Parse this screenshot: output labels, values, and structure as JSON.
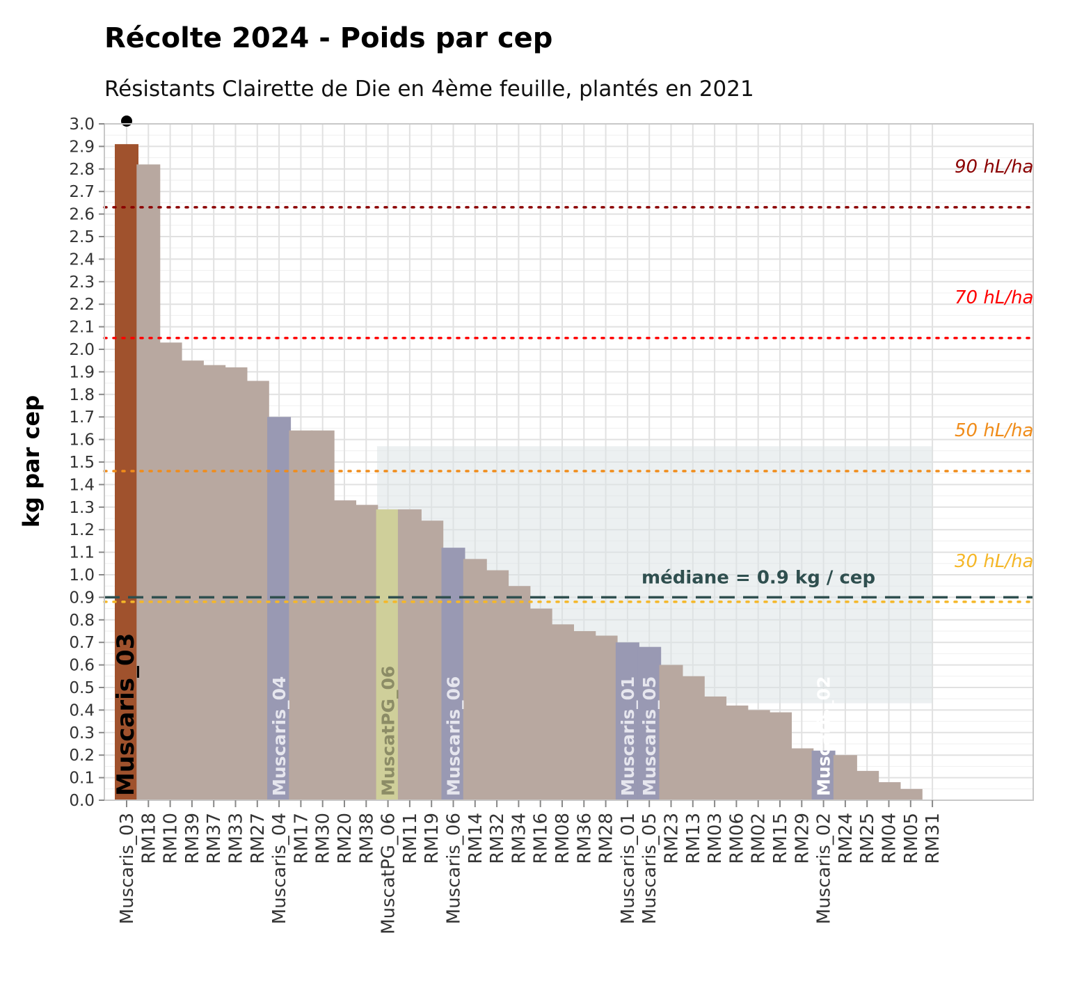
{
  "chart_data": {
    "type": "bar",
    "title": "Récolte 2024 - Poids par cep",
    "subtitle": "Résistants Clairette de Die en 4ème feuille, plantés en 2021",
    "xlabel": "",
    "ylabel": "kg par cep",
    "ylim": [
      0,
      3.0
    ],
    "yticks": [
      "0.0",
      "0.1",
      "0.2",
      "0.3",
      "0.4",
      "0.5",
      "0.6",
      "0.7",
      "0.8",
      "0.9",
      "1.0",
      "1.1",
      "1.2",
      "1.3",
      "1.4",
      "1.5",
      "1.6",
      "1.7",
      "1.8",
      "1.9",
      "2.0",
      "2.1",
      "2.2",
      "2.3",
      "2.4",
      "2.5",
      "2.6",
      "2.7",
      "2.8",
      "2.9",
      "3.0"
    ],
    "grid": true,
    "categories": [
      "Muscaris_03",
      "RM18",
      "RM10",
      "RM39",
      "RM37",
      "RM33",
      "RM27",
      "Muscaris_04",
      "RM17",
      "RM30",
      "RM20",
      "RM38",
      "MuscatPG_06",
      "RM11",
      "RM19",
      "Muscaris_06",
      "RM14",
      "RM32",
      "RM34",
      "RM16",
      "RM08",
      "RM36",
      "RM28",
      "Muscaris_01",
      "Muscaris_05",
      "RM23",
      "RM13",
      "RM03",
      "RM06",
      "RM02",
      "RM15",
      "RM29",
      "Muscaris_02",
      "RM24",
      "RM25",
      "RM04",
      "RM05",
      "RM31"
    ],
    "values": [
      2.91,
      2.82,
      2.03,
      1.95,
      1.93,
      1.92,
      1.86,
      1.7,
      1.64,
      1.64,
      1.33,
      1.31,
      1.29,
      1.29,
      1.24,
      1.12,
      1.07,
      1.02,
      0.95,
      0.85,
      0.78,
      0.75,
      0.73,
      0.7,
      0.68,
      0.6,
      0.55,
      0.46,
      0.42,
      0.4,
      0.39,
      0.23,
      0.22,
      0.2,
      0.13,
      0.08,
      0.05,
      0.0
    ],
    "bar_colors": {
      "Muscaris_03": "#a0522d",
      "Muscaris_04": "#9999b3",
      "Muscaris_06": "#9999b3",
      "Muscaris_01": "#9999b3",
      "Muscaris_05": "#9999b3",
      "Muscaris_02": "#9999b3",
      "MuscatPG_06": "#cfcf9a",
      "default": "#b8a8a0"
    },
    "bar_labels": [
      {
        "category": "Muscaris_03",
        "text": "Muscaris_03",
        "color": "#000000"
      },
      {
        "category": "Muscaris_04",
        "text": "Muscaris_04",
        "color": "#e6e6ee"
      },
      {
        "category": "MuscatPG_06",
        "text": "MuscatPG_06",
        "color": "#8c8c66"
      },
      {
        "category": "Muscaris_06",
        "text": "Muscaris_06",
        "color": "#e6e6ee"
      },
      {
        "category": "Muscaris_01",
        "text": "Muscaris_01",
        "color": "#e6e6ee"
      },
      {
        "category": "Muscaris_05",
        "text": "Muscaris_05",
        "color": "#e6e6ee"
      },
      {
        "category": "Muscaris_02",
        "text": "Muscaris_02",
        "color": "#ffffff"
      }
    ],
    "reference_lines": [
      {
        "label": "90 hL/ha",
        "value": 2.63,
        "color": "#8b0000"
      },
      {
        "label": "70 hL/ha",
        "value": 2.05,
        "color": "#ff0000"
      },
      {
        "label": "50 hL/ha",
        "value": 1.46,
        "color": "#f08c1a"
      },
      {
        "label": "30 hL/ha",
        "value": 0.88,
        "color": "#f5b728"
      }
    ],
    "median": {
      "value": 0.9,
      "label": "médiane = 0.9 kg / cep",
      "color": "#2f4f4f"
    },
    "iqr_band": {
      "x_from": "MuscatPG_06",
      "x_to": "RM31",
      "y_from": 0.43,
      "y_to": 1.57,
      "color": "#dde3e6"
    }
  }
}
